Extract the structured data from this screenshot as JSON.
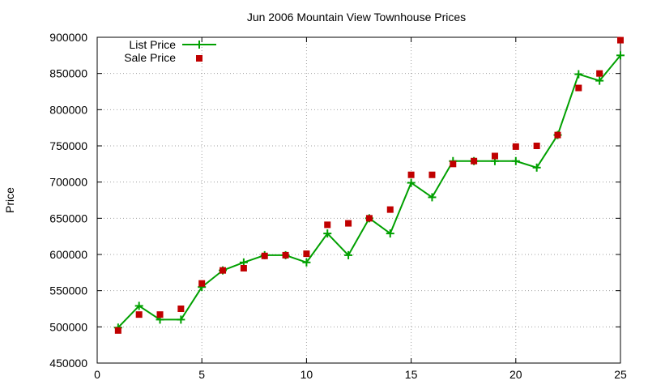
{
  "chart_data": {
    "type": "line",
    "title": "Jun 2006 Mountain View Townhouse Prices",
    "xlabel": "",
    "ylabel": "Price",
    "xlim": [
      0,
      25
    ],
    "ylim": [
      450000,
      900000
    ],
    "x_ticks": [
      0,
      5,
      10,
      15,
      20,
      25
    ],
    "y_ticks": [
      450000,
      500000,
      550000,
      600000,
      650000,
      700000,
      750000,
      800000,
      850000,
      900000
    ],
    "grid": true,
    "legend_position": "top-left",
    "series": [
      {
        "name": "List Price",
        "style": "line-with-plus-markers",
        "color": "#00a000",
        "points": [
          [
            1,
            499000
          ],
          [
            2,
            529000
          ],
          [
            3,
            510000
          ],
          [
            4,
            510000
          ],
          [
            5,
            555000
          ],
          [
            6,
            578000
          ],
          [
            7,
            589000
          ],
          [
            8,
            599000
          ],
          [
            9,
            599000
          ],
          [
            10,
            589000
          ],
          [
            11,
            629000
          ],
          [
            12,
            599000
          ],
          [
            13,
            650000
          ],
          [
            14,
            629000
          ],
          [
            15,
            699000
          ],
          [
            16,
            679000
          ],
          [
            17,
            729000
          ],
          [
            18,
            729000
          ],
          [
            19,
            729000
          ],
          [
            20,
            729000
          ],
          [
            21,
            720000
          ],
          [
            22,
            765000
          ],
          [
            23,
            849000
          ],
          [
            24,
            840000
          ],
          [
            25,
            875000
          ]
        ]
      },
      {
        "name": "Sale Price",
        "style": "square-markers",
        "color": "#c00000",
        "points": [
          [
            1,
            495000
          ],
          [
            2,
            517000
          ],
          [
            3,
            517000
          ],
          [
            4,
            525000
          ],
          [
            5,
            560000
          ],
          [
            6,
            578000
          ],
          [
            7,
            581000
          ],
          [
            8,
            598000
          ],
          [
            9,
            599000
          ],
          [
            10,
            601000
          ],
          [
            11,
            641000
          ],
          [
            12,
            643000
          ],
          [
            13,
            650000
          ],
          [
            14,
            662000
          ],
          [
            15,
            710000
          ],
          [
            16,
            710000
          ],
          [
            17,
            725000
          ],
          [
            18,
            729000
          ],
          [
            19,
            736000
          ],
          [
            20,
            749000
          ],
          [
            21,
            750000
          ],
          [
            22,
            765000
          ],
          [
            23,
            830000
          ],
          [
            24,
            850000
          ],
          [
            25,
            896000
          ]
        ]
      }
    ]
  }
}
